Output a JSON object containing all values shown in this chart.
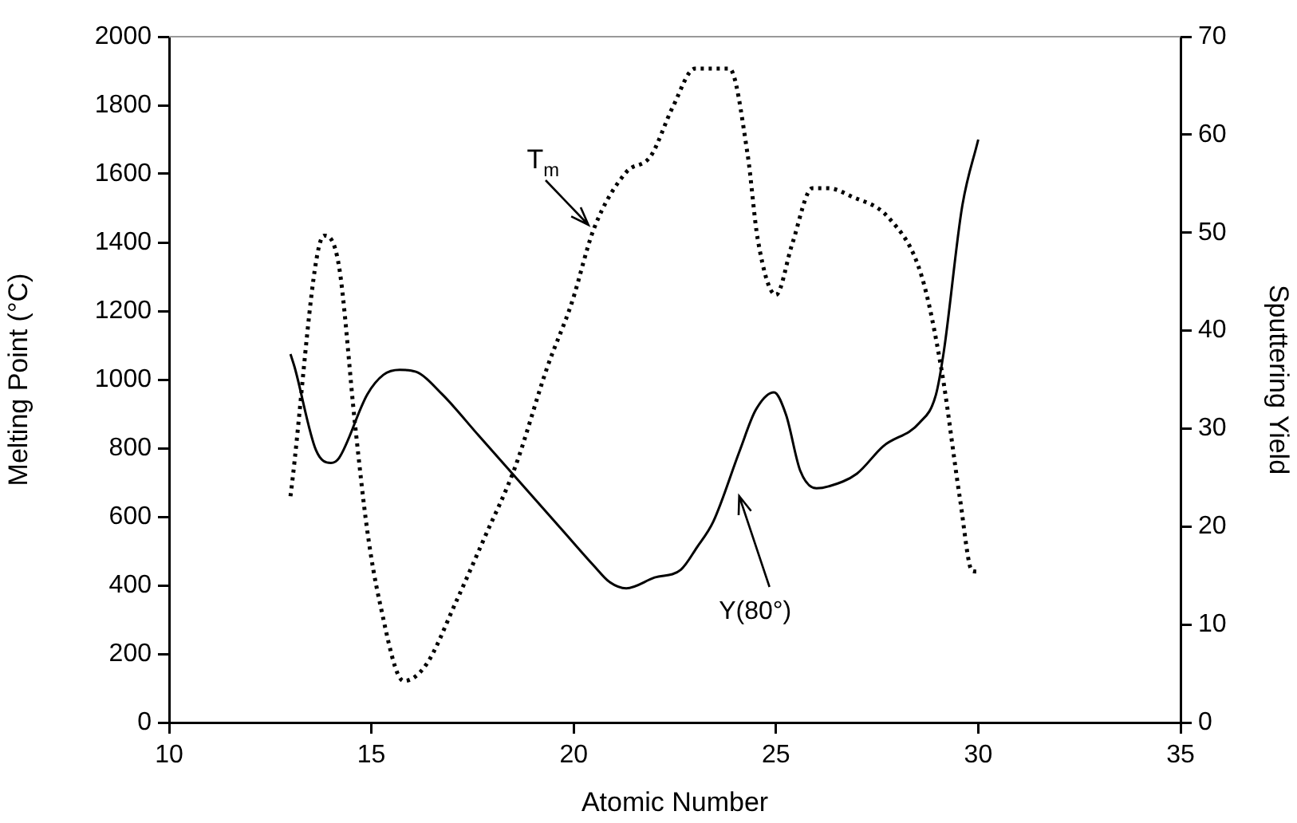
{
  "chart_data": {
    "type": "line",
    "xlabel": "Atomic Number",
    "ylabel": "Melting Point (°C)",
    "y2label": "Sputtering Yield",
    "xlim": [
      10,
      35
    ],
    "xticks": [
      10,
      15,
      20,
      25,
      30,
      35
    ],
    "ylim": [
      0,
      2000
    ],
    "yticks": [
      0,
      200,
      400,
      600,
      800,
      1000,
      1200,
      1400,
      1600,
      1800,
      2000
    ],
    "y2lim": [
      0,
      70
    ],
    "y2ticks": [
      0,
      10,
      20,
      30,
      40,
      50,
      60,
      70
    ],
    "grid": false,
    "legend": false,
    "marker": "none",
    "series": [
      {
        "name": "T$_{m}$",
        "color": "#000000",
        "line_style": "dotted",
        "x": [
          13,
          13.83,
          14.2,
          14.6,
          14.9,
          15.2,
          15.8,
          16.35,
          17.1,
          17.8,
          18.55,
          19.35,
          19.95,
          20.5,
          21.3,
          21.9,
          22.45,
          23.0,
          23.85,
          24.3,
          24.55,
          25.0,
          25.4,
          25.9,
          26.3,
          26.85,
          27.8,
          28.6,
          29.1,
          29.55,
          29.85,
          30
        ],
        "values": [
          660,
          1420,
          1330,
          865,
          558,
          354,
          121,
          168,
          354,
          540,
          744,
          1037,
          1223,
          1440,
          1605,
          1651,
          1795,
          1907,
          1907,
          1656,
          1409,
          1247,
          1395,
          1558,
          1558,
          1535,
          1470,
          1302,
          1023,
          651,
          442,
          440
        ]
      },
      {
        "name": "Y(80°)",
        "color": "#000000",
        "line_style": "solid",
        "axis": "y2",
        "x": [
          13.0,
          13.1,
          13.63,
          14.0,
          14.2,
          14.9,
          15.3,
          15.7,
          16.1,
          16.75,
          17.65,
          18.7,
          19.75,
          20.5,
          20.9,
          21.3,
          22.0,
          22.65,
          23.05,
          23.45,
          24.1,
          24.5,
          24.95,
          25.25,
          25.6,
          26.0,
          26.3,
          27.0,
          27.65,
          28.55,
          28.95,
          29.15,
          29.6,
          30
        ],
        "values": [
          37.6,
          36.3,
          27.8,
          26.5,
          27.0,
          33.5,
          35.5,
          36.0,
          35.8,
          33.5,
          29.3,
          24.4,
          19.5,
          16.0,
          14.3,
          13.7,
          14.8,
          15.6,
          17.9,
          20.5,
          27.7,
          31.9,
          33.7,
          31.4,
          25.7,
          23.9,
          24.1,
          25.4,
          28.2,
          30.6,
          33.4,
          37.9,
          52.6,
          59.5
        ]
      }
    ]
  }
}
